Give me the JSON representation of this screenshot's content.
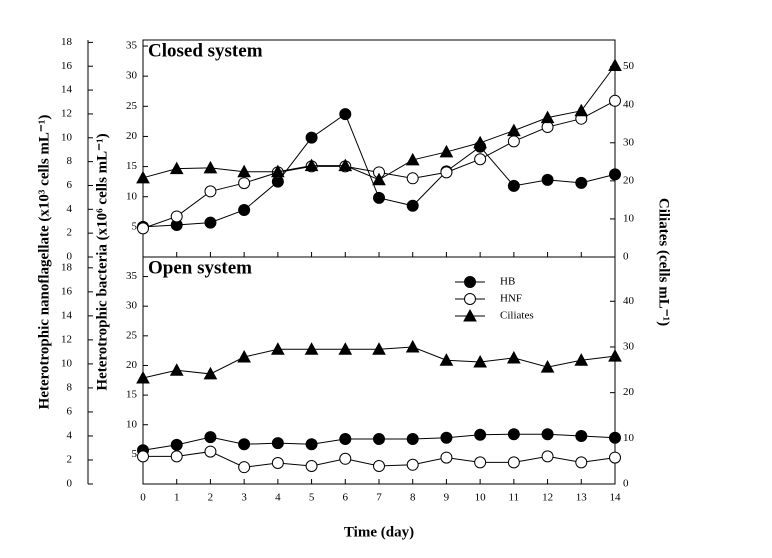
{
  "chart_data": [
    {
      "type": "line",
      "title": "Closed system",
      "ylabel": "Heterotrophic bacteria (x10⁶ cells mL⁻¹)",
      "y3label": "Heterotrophic nanoflagellate (x10³ cells mL⁻¹)",
      "y2label": "Ciliates (cells mL⁻¹)",
      "x": [
        0,
        1,
        2,
        3,
        4,
        5,
        6,
        7,
        8,
        9,
        10,
        11,
        12,
        13,
        14
      ],
      "xlim": [
        0,
        14
      ],
      "xticks": [
        0,
        1,
        2,
        3,
        4,
        5,
        6,
        7,
        8,
        9,
        10,
        11,
        12,
        13,
        14
      ],
      "ylim": [
        0,
        36
      ],
      "yticks": [
        5,
        10,
        15,
        20,
        25,
        30,
        35
      ],
      "y3lim": [
        0,
        18.2
      ],
      "y3ticks": [
        0,
        2,
        4,
        6,
        8,
        10,
        12,
        14,
        16,
        18
      ],
      "y2lim": [
        0,
        57
      ],
      "y2ticks": [
        0,
        10,
        20,
        30,
        40,
        50
      ],
      "series": [
        {
          "name": "HB",
          "marker": "circle",
          "color": "#000000",
          "values": [
            5,
            5.3,
            5.7,
            7.8,
            12.5,
            19.8,
            23.7,
            9.8,
            8.5,
            14.2,
            18.3,
            11.8,
            12.8,
            12.3,
            13.7
          ]
        },
        {
          "name": "HNF",
          "marker": "circle",
          "color": "#ffffff",
          "axis": "y3",
          "values": [
            2.4,
            3.4,
            5.5,
            6.2,
            7.1,
            7.6,
            7.6,
            7.1,
            6.6,
            7.1,
            8.2,
            9.7,
            10.9,
            11.6,
            13.1
          ]
        },
        {
          "name": "Ciliates",
          "marker": "triangle",
          "color": "#000000",
          "axis": "y2",
          "values": [
            20.8,
            23.2,
            23.4,
            22.4,
            22.4,
            24,
            24,
            20.3,
            25.5,
            27.6,
            30,
            33.2,
            36.6,
            38.4,
            50.3
          ]
        }
      ]
    },
    {
      "type": "line",
      "title": "Open system",
      "xlabel": "Time (day)",
      "legend": "upper right",
      "x": [
        0,
        1,
        2,
        3,
        4,
        5,
        6,
        7,
        8,
        9,
        10,
        11,
        12,
        13,
        14
      ],
      "xlim": [
        0,
        14
      ],
      "xticks": [
        0,
        1,
        2,
        3,
        4,
        5,
        6,
        7,
        8,
        9,
        10,
        11,
        12,
        13,
        14
      ],
      "ylim": [
        0,
        38.3
      ],
      "yticks": [
        5,
        10,
        15,
        20,
        25,
        30,
        35
      ],
      "y3lim": [
        0,
        18.9
      ],
      "y3ticks": [
        0,
        2,
        4,
        6,
        8,
        10,
        12,
        14,
        16,
        18
      ],
      "y2lim": [
        0,
        49.7
      ],
      "y2ticks": [
        0,
        10,
        20,
        30,
        40
      ],
      "series": [
        {
          "name": "HB",
          "marker": "circle",
          "color": "#000000",
          "values": [
            5.7,
            6.6,
            7.9,
            6.7,
            6.9,
            6.7,
            7.6,
            7.6,
            7.6,
            7.8,
            8.3,
            8.4,
            8.4,
            8.1,
            7.8
          ]
        },
        {
          "name": "HNF",
          "marker": "circle",
          "color": "#ffffff",
          "axis": "y3",
          "values": [
            2.3,
            2.3,
            2.7,
            1.4,
            1.75,
            1.5,
            2.1,
            1.5,
            1.6,
            2.2,
            1.8,
            1.8,
            2.3,
            1.8,
            2.2
          ]
        },
        {
          "name": "Ciliates",
          "marker": "triangle",
          "color": "#000000",
          "axis": "y2",
          "values": [
            23.2,
            24.9,
            24.1,
            27.8,
            29.5,
            29.5,
            29.5,
            29.5,
            30,
            27.1,
            26.7,
            27.6,
            25.6,
            27.1,
            28
          ]
        }
      ]
    }
  ]
}
